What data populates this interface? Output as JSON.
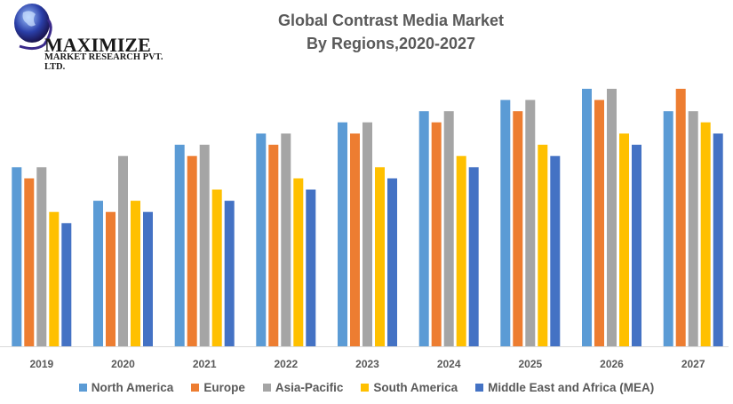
{
  "brand": {
    "name": "MAXIMIZE",
    "subtitle": "MARKET RESEARCH PVT. LTD."
  },
  "chart_data": {
    "type": "bar",
    "title": "Global Contrast Media Market",
    "subtitle": "By Regions,2020-2027",
    "xlabel": "",
    "ylabel": "",
    "grid": false,
    "y_axis_visible": false,
    "legend_position": "bottom",
    "ylim": [
      0,
      23
    ],
    "categories": [
      "2019",
      "2020",
      "2021",
      "2022",
      "2023",
      "2024",
      "2025",
      "2026",
      "2027"
    ],
    "series": [
      {
        "name": "North America",
        "color": "#5B9BD5",
        "values": [
          16,
          13,
          18,
          19,
          20,
          21,
          22,
          23,
          21
        ]
      },
      {
        "name": "Europe",
        "color": "#ED7D31",
        "values": [
          15,
          12,
          17,
          18,
          19,
          20,
          21,
          22,
          23
        ]
      },
      {
        "name": "Asia-Pacific",
        "color": "#A5A5A5",
        "values": [
          16,
          17,
          18,
          19,
          20,
          21,
          22,
          23,
          21
        ]
      },
      {
        "name": "South America",
        "color": "#FFC000",
        "values": [
          12,
          13,
          14,
          15,
          16,
          17,
          18,
          19,
          20
        ]
      },
      {
        "name": "Middle East and Africa (MEA)",
        "color": "#4472C4",
        "values": [
          11,
          12,
          13,
          14,
          15,
          16,
          17,
          18,
          19
        ]
      }
    ]
  }
}
